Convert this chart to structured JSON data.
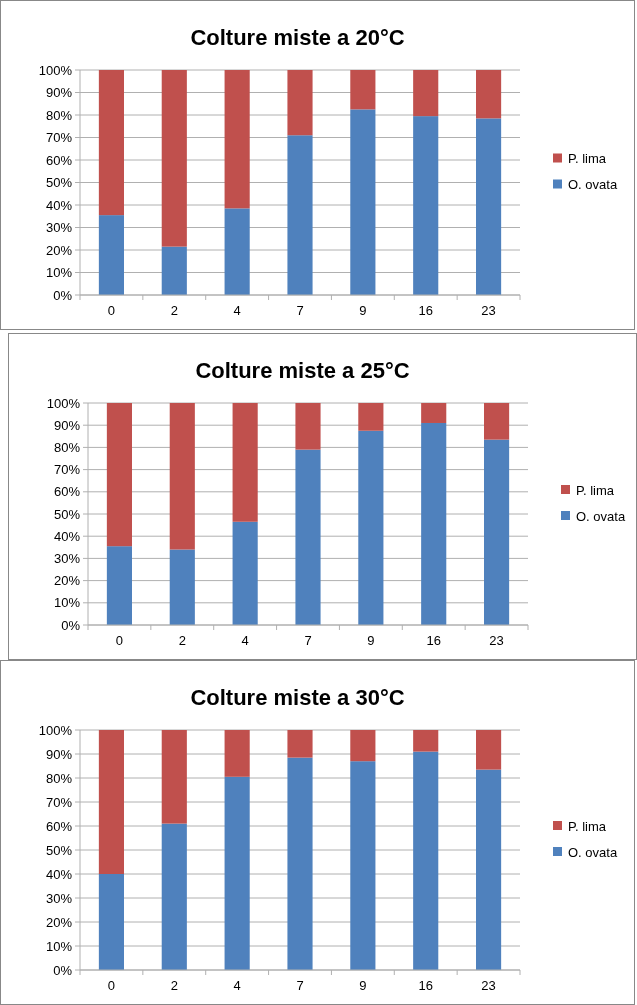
{
  "chart_data": [
    {
      "type": "bar",
      "title": "Colture miste a 20°C",
      "stacked": true,
      "categories": [
        "0",
        "2",
        "4",
        "7",
        "9",
        "16",
        "23"
      ],
      "ylim": [
        0,
        100
      ],
      "yticks": [
        {
          "value": 0,
          "label": "0%"
        },
        {
          "value": 10,
          "label": "10%"
        },
        {
          "value": 20,
          "label": "20%"
        },
        {
          "value": 30,
          "label": "30%"
        },
        {
          "value": 40,
          "label": "40%"
        },
        {
          "value": 50,
          "label": "50%"
        },
        {
          "value": 60,
          "label": "60%"
        },
        {
          "value": 70,
          "label": "70%"
        },
        {
          "value": 80,
          "label": "80%"
        },
        {
          "value": 90,
          "label": "90%"
        },
        {
          "value": 100,
          "label": "100%"
        }
      ],
      "grid": "y",
      "legend": "right",
      "series": [
        {
          "name": "O. ovata",
          "color": "#4f81bd",
          "values": [
            35.5,
            21.5,
            38.5,
            71,
            82.5,
            79.5,
            78.5
          ]
        },
        {
          "name": "P. lima",
          "color": "#c0504d",
          "values": [
            64.5,
            78.5,
            61.5,
            29,
            17.5,
            20.5,
            21.5
          ]
        }
      ]
    },
    {
      "type": "bar",
      "title": "Colture miste a 25°C",
      "stacked": true,
      "categories": [
        "0",
        "2",
        "4",
        "7",
        "9",
        "16",
        "23"
      ],
      "ylim": [
        0,
        100
      ],
      "yticks": [
        {
          "value": 0,
          "label": "0%"
        },
        {
          "value": 10,
          "label": "10%"
        },
        {
          "value": 20,
          "label": "20%"
        },
        {
          "value": 30,
          "label": "30%"
        },
        {
          "value": 40,
          "label": "40%"
        },
        {
          "value": 50,
          "label": "50%"
        },
        {
          "value": 60,
          "label": "60%"
        },
        {
          "value": 70,
          "label": "70%"
        },
        {
          "value": 80,
          "label": "80%"
        },
        {
          "value": 90,
          "label": "90%"
        },
        {
          "value": 100,
          "label": "100%"
        }
      ],
      "grid": "y",
      "legend": "right",
      "series": [
        {
          "name": "O. ovata",
          "color": "#4f81bd",
          "values": [
            35.5,
            34,
            46.5,
            79,
            87.5,
            91,
            83.5
          ]
        },
        {
          "name": "P. lima",
          "color": "#c0504d",
          "values": [
            64.5,
            66,
            53.5,
            21,
            12.5,
            9,
            16.5
          ]
        }
      ]
    },
    {
      "type": "bar",
      "title": "Colture miste a 30°C",
      "stacked": true,
      "categories": [
        "0",
        "2",
        "4",
        "7",
        "9",
        "16",
        "23"
      ],
      "ylim": [
        0,
        100
      ],
      "yticks": [
        {
          "value": 0,
          "label": "0%"
        },
        {
          "value": 10,
          "label": "10%"
        },
        {
          "value": 20,
          "label": "20%"
        },
        {
          "value": 30,
          "label": "30%"
        },
        {
          "value": 40,
          "label": "40%"
        },
        {
          "value": 50,
          "label": "50%"
        },
        {
          "value": 60,
          "label": "60%"
        },
        {
          "value": 70,
          "label": "70%"
        },
        {
          "value": 80,
          "label": "80%"
        },
        {
          "value": 90,
          "label": "90%"
        },
        {
          "value": 100,
          "label": "100%"
        }
      ],
      "grid": "y",
      "legend": "right",
      "series": [
        {
          "name": "O. ovata",
          "color": "#4f81bd",
          "values": [
            40,
            61,
            80.5,
            88.5,
            87,
            91,
            83.5
          ]
        },
        {
          "name": "P. lima",
          "color": "#c0504d",
          "values": [
            60,
            39,
            19.5,
            11.5,
            13,
            9,
            16.5
          ]
        }
      ]
    }
  ]
}
